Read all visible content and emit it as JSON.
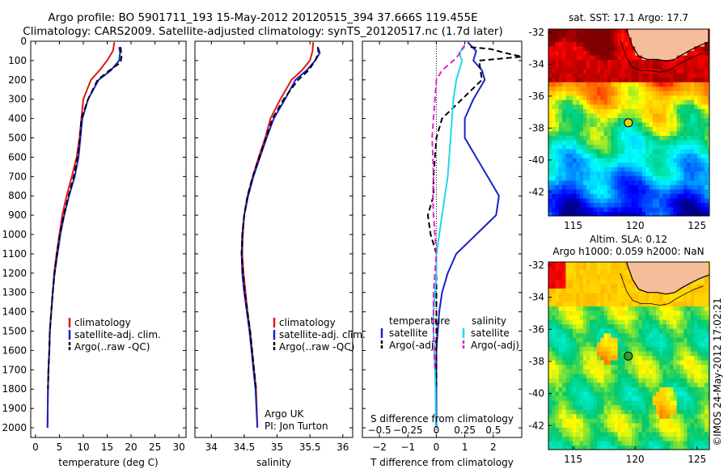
{
  "titles": {
    "line1": "Argo profile: BO 5901711_193 15-May-2012 20120515_394 37.666S 119.455E",
    "line2": "Climatology: CARS2009. Satellite-adjusted climatology: synTS_20120517.nc (1.7d later)"
  },
  "colors": {
    "climatology": "#e01818",
    "satellite": "#1822c8",
    "argo": "#000000",
    "sat_salinity": "#22d8e8",
    "argo_salinity_adj": "#e020d8",
    "land": "#f5bd9a"
  },
  "chart_data": [
    {
      "id": "temperature",
      "type": "line",
      "xlabel": "temperature (deg C)",
      "ylabel": "",
      "xlim": [
        -1,
        31.5
      ],
      "ylim": [
        2050,
        0
      ],
      "xticks": [
        0,
        5,
        10,
        15,
        20,
        25,
        30
      ],
      "xtick_labels": [
        "0",
        "5",
        "10",
        "15",
        "20",
        "25",
        "30"
      ],
      "yticks": [
        0,
        100,
        200,
        300,
        400,
        500,
        600,
        700,
        800,
        900,
        1000,
        1100,
        1200,
        1300,
        1400,
        1500,
        1600,
        1700,
        1800,
        1900,
        2000
      ],
      "ytick_labels": [
        "0",
        "100",
        "200",
        "300",
        "400",
        "500",
        "600",
        "700",
        "800",
        "900",
        "1000",
        "1100",
        "1200",
        "1300",
        "1400",
        "1500",
        "1600",
        "1700",
        "1800",
        "1900",
        "2000"
      ],
      "legend": [
        "climatology",
        "satellite-adj. clim.",
        "Argo(..raw -QC)"
      ],
      "legend_position": "lower-middle",
      "series": [
        {
          "name": "climatology",
          "style": "solid",
          "color_key": "climatology",
          "x": [
            16.5,
            16.2,
            15.0,
            13.4,
            11.6,
            10.0,
            9.6,
            9.2,
            8.6,
            7.6,
            6.5,
            5.6,
            5.0,
            4.4,
            3.9,
            3.6,
            3.3,
            3.0,
            2.9,
            2.7,
            2.6,
            2.5
          ],
          "y": [
            5,
            50,
            100,
            150,
            200,
            300,
            400,
            500,
            600,
            700,
            800,
            900,
            1000,
            1100,
            1200,
            1300,
            1400,
            1500,
            1600,
            1700,
            1800,
            2000
          ]
        },
        {
          "name": "satellite-adj. clim.",
          "style": "solid",
          "color_key": "satellite",
          "x": [
            17.5,
            17.7,
            17.5,
            15.8,
            13.2,
            11.0,
            9.8,
            9.4,
            9.0,
            8.2,
            7.0,
            6.0,
            5.2,
            4.6,
            4.0,
            3.6,
            3.3,
            3.0,
            2.9,
            2.7,
            2.6,
            2.5
          ],
          "y": [
            30,
            60,
            100,
            150,
            200,
            300,
            400,
            500,
            600,
            700,
            800,
            900,
            1000,
            1100,
            1200,
            1300,
            1400,
            1500,
            1600,
            1700,
            1800,
            2000
          ]
        },
        {
          "name": "Argo(..raw -QC)",
          "style": "dashed",
          "color_key": "argo",
          "x": [
            17.8,
            18.0,
            17.8,
            15.5,
            13.0,
            11.0,
            9.6,
            9.3,
            8.8,
            8.0,
            6.9,
            5.9,
            5.1,
            4.5,
            4.0,
            3.6,
            3.3,
            3.0,
            2.9,
            2.7,
            2.6
          ],
          "y": [
            30,
            80,
            110,
            150,
            200,
            300,
            400,
            500,
            600,
            700,
            800,
            900,
            1000,
            1100,
            1200,
            1300,
            1400,
            1500,
            1600,
            1700,
            1800
          ]
        }
      ]
    },
    {
      "id": "salinity",
      "type": "line",
      "xlabel": "salinity",
      "ylabel": "",
      "xlim": [
        33.75,
        36.15
      ],
      "ylim": [
        2050,
        0
      ],
      "xticks": [
        34,
        34.5,
        35,
        35.5,
        36
      ],
      "xtick_labels": [
        "34",
        "34.5",
        "35",
        "35.5",
        "36"
      ],
      "legend": [
        "climatology",
        "satellite-adj. clim.",
        "Argo(..raw -QC)"
      ],
      "legend_position": "lower-middle",
      "annotations": [
        "Argo UK",
        "PI: Jon Turton"
      ],
      "series": [
        {
          "name": "climatology",
          "style": "solid",
          "color_key": "climatology",
          "x": [
            35.55,
            35.54,
            35.5,
            35.38,
            35.22,
            35.05,
            34.9,
            34.82,
            34.72,
            34.63,
            34.55,
            34.5,
            34.48,
            34.47,
            34.49,
            34.52,
            34.55,
            34.59,
            34.62,
            34.65,
            34.68,
            34.7
          ],
          "y": [
            5,
            50,
            100,
            150,
            200,
            300,
            400,
            500,
            600,
            700,
            800,
            900,
            1000,
            1100,
            1200,
            1300,
            1400,
            1500,
            1600,
            1700,
            1800,
            2000
          ]
        },
        {
          "name": "satellite-adj. clim.",
          "style": "solid",
          "color_key": "satellite",
          "x": [
            35.62,
            35.65,
            35.58,
            35.45,
            35.28,
            35.12,
            34.95,
            34.84,
            34.74,
            34.64,
            34.56,
            34.5,
            34.47,
            34.46,
            34.47,
            34.5,
            34.54,
            34.58,
            34.61,
            34.64,
            34.67,
            34.7
          ],
          "y": [
            30,
            60,
            100,
            150,
            200,
            300,
            400,
            500,
            600,
            700,
            800,
            900,
            1000,
            1100,
            1200,
            1300,
            1400,
            1500,
            1600,
            1700,
            1800,
            2000
          ]
        },
        {
          "name": "Argo(..raw -QC)",
          "style": "dashed",
          "color_key": "argo",
          "x": [
            35.62,
            35.63,
            35.58,
            35.48,
            35.32,
            35.1,
            34.93,
            34.83,
            34.73,
            34.63,
            34.55,
            34.5,
            34.47,
            34.46,
            34.48,
            34.51,
            34.55,
            34.59,
            34.62,
            34.65,
            34.68
          ],
          "y": [
            30,
            60,
            100,
            150,
            200,
            300,
            400,
            500,
            600,
            700,
            800,
            900,
            1000,
            1100,
            1200,
            1300,
            1400,
            1500,
            1600,
            1700,
            1800
          ]
        }
      ]
    },
    {
      "id": "differences",
      "type": "line",
      "xlabel": "T difference from climatology",
      "x2label": "S difference from climatology",
      "xlim": [
        -2.6,
        3.0
      ],
      "ylim": [
        2050,
        0
      ],
      "xticks": [
        -2,
        -1,
        0,
        1,
        2
      ],
      "xtick_labels": [
        "−2",
        "−1",
        "0",
        "1",
        "2"
      ],
      "x2ticks": [
        -0.5,
        -0.25,
        0,
        0.25,
        0.5
      ],
      "x2tick_labels": [
        "−0.5",
        "−0.25",
        "0",
        "0.25",
        "0.5"
      ],
      "legend_headers": [
        "temperature",
        "salinity"
      ],
      "legend": [
        "satellite",
        "Argo(-adj)",
        "satellite",
        "Argo(-adj)"
      ],
      "legend_position": "lower",
      "series": [
        {
          "name": "satellite",
          "group": "temperature",
          "style": "solid",
          "color_key": "satellite",
          "x": [
            1.1,
            1.4,
            1.3,
            1.6,
            1.7,
            1.3,
            1.0,
            1.0,
            1.4,
            1.8,
            2.2,
            2.1,
            1.4,
            0.7,
            0.4,
            0.2,
            0.1,
            0.05,
            0.0,
            0.0,
            0.0,
            0.0
          ],
          "y": [
            5,
            50,
            100,
            150,
            200,
            300,
            400,
            500,
            600,
            700,
            800,
            900,
            1000,
            1100,
            1200,
            1300,
            1400,
            1500,
            1600,
            1700,
            1800,
            2000
          ]
        },
        {
          "name": "Argo(-adj)",
          "group": "temperature",
          "style": "dashed",
          "color_key": "argo",
          "x": [
            1.2,
            1.9,
            2.4,
            3.0,
            1.5,
            1.6,
            0.9,
            0.2,
            0.0,
            -0.05,
            -0.1,
            -0.1,
            -0.3,
            -0.2,
            0.0,
            0.0,
            0.0,
            0.0,
            0.0,
            0.0,
            0.0
          ],
          "y": [
            30,
            40,
            60,
            80,
            100,
            200,
            300,
            400,
            500,
            600,
            700,
            800,
            900,
            1000,
            1100,
            1200,
            1300,
            1400,
            1500,
            1600,
            1800
          ]
        },
        {
          "name": "satellite",
          "group": "salinity",
          "style": "solid",
          "color_key": "sat_salinity",
          "x": [
            1.0,
            0.8,
            0.9,
            0.8,
            0.7,
            0.6,
            0.55,
            0.5,
            0.45,
            0.4,
            0.3,
            0.2,
            0.1,
            0.0,
            0.0,
            -0.05,
            -0.1,
            -0.1,
            -0.08,
            -0.05,
            -0.03,
            -0.02
          ],
          "y": [
            30,
            60,
            100,
            150,
            200,
            300,
            400,
            500,
            600,
            700,
            800,
            900,
            1000,
            1100,
            1200,
            1300,
            1400,
            1500,
            1600,
            1700,
            1800,
            2000
          ]
        },
        {
          "name": "Argo(-adj)",
          "group": "salinity",
          "style": "dashed",
          "color_key": "argo_salinity_adj",
          "x": [
            1.0,
            0.9,
            0.85,
            0.6,
            0.2,
            0.0,
            -0.05,
            -0.1,
            -0.15,
            -0.12,
            -0.1,
            -0.12,
            -0.1,
            -0.05,
            0.0,
            -0.05,
            -0.1,
            -0.1,
            -0.05
          ],
          "y": [
            20,
            40,
            60,
            100,
            150,
            200,
            300,
            400,
            500,
            600,
            700,
            800,
            900,
            1000,
            1100,
            1200,
            1300,
            1500,
            1700
          ]
        }
      ]
    },
    {
      "id": "sst_map",
      "type": "heatmap",
      "title": "sat. SST: 17.1  Argo: 17.7",
      "xlim": [
        113,
        126
      ],
      "ylim": [
        -43.5,
        -31.8
      ],
      "xticks": [
        115,
        120,
        125
      ],
      "xtick_labels": [
        "115",
        "120",
        "125"
      ],
      "yticks": [
        -32,
        -34,
        -36,
        -38,
        -40,
        -42
      ],
      "ytick_labels": [
        "-32",
        "-34",
        "-36",
        "-38",
        "-40",
        "-42"
      ],
      "marker": {
        "lon": 119.455,
        "lat": -37.666
      },
      "colormap": "jet"
    },
    {
      "id": "sla_map",
      "type": "heatmap",
      "title": "Altim. SLA: 0.12",
      "subtitle": "Argo h1000: 0.059 h2000: NaN",
      "xlim": [
        113,
        126
      ],
      "ylim": [
        -43.5,
        -31.8
      ],
      "xticks": [
        115,
        120,
        125
      ],
      "xtick_labels": [
        "115",
        "120",
        "125"
      ],
      "yticks": [
        -32,
        -34,
        -36,
        -38,
        -40,
        -42
      ],
      "ytick_labels": [
        "-32",
        "-34",
        "-36",
        "-38",
        "-40",
        "-42"
      ],
      "marker": {
        "lon": 119.455,
        "lat": -37.666
      },
      "colormap": "jet"
    }
  ],
  "side_label": "©IMOS 24-May-2012 17:02:21"
}
